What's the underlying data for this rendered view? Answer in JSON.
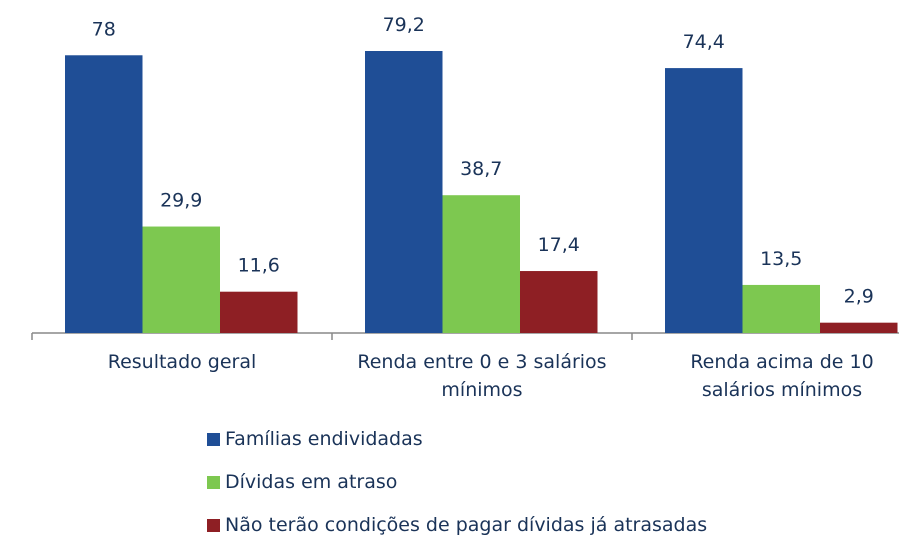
{
  "chart_data": {
    "type": "bar",
    "categories": [
      "Resultado geral",
      "Renda entre 0 e 3 salários mínimos",
      "Renda acima de 10 salários mínimos"
    ],
    "series": [
      {
        "name": "Famílias endividadas",
        "color": "#1f4e96",
        "values": [
          78,
          79.2,
          74.4
        ],
        "value_labels": [
          "78",
          "79,2",
          "74,4"
        ]
      },
      {
        "name": "Dívidas em atraso",
        "color": "#7dc850",
        "values": [
          29.9,
          38.7,
          13.5
        ],
        "value_labels": [
          "29,9",
          "38,7",
          "13,5"
        ]
      },
      {
        "name": "Não terão condições de pagar dívidas já atrasadas",
        "color": "#8e1f24",
        "values": [
          11.6,
          17.4,
          2.9
        ],
        "value_labels": [
          "11,6",
          "17,4",
          "2,9"
        ]
      }
    ]
  }
}
